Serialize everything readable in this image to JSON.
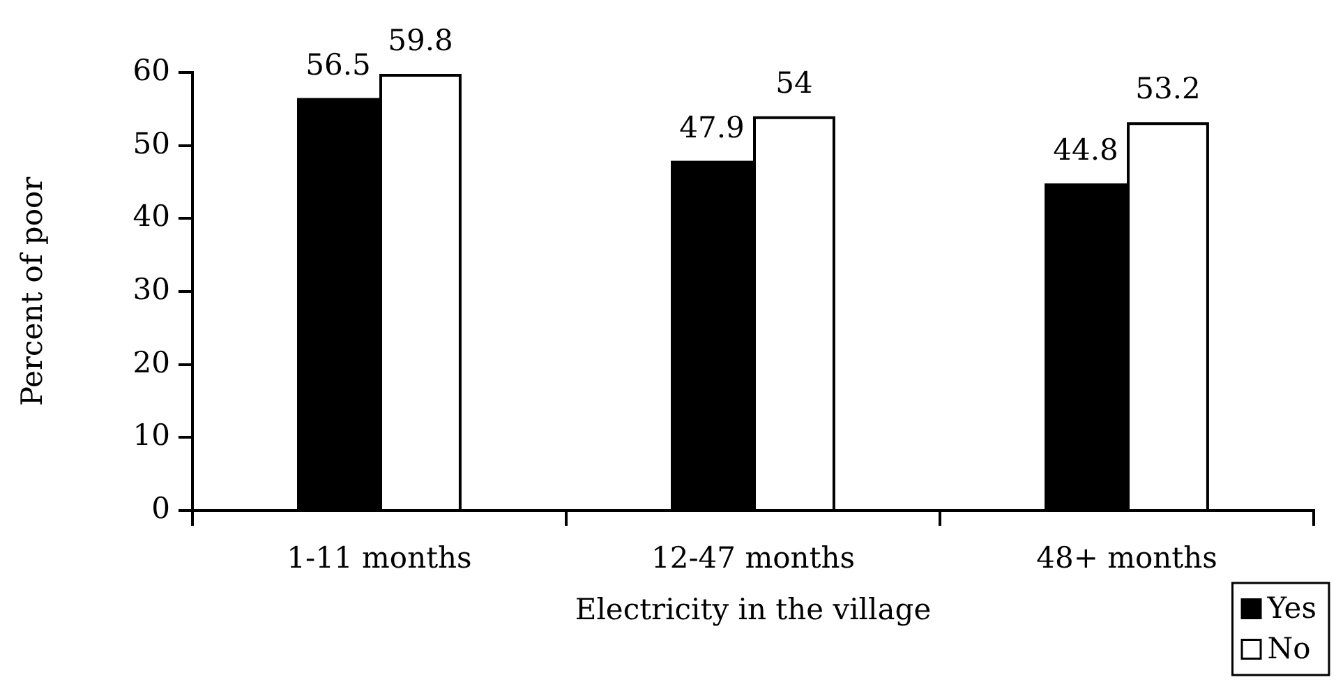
{
  "chart_data": {
    "type": "bar",
    "xlabel": "Electricity in the village",
    "ylabel": "Percent of poor",
    "categories": [
      "1-11 months",
      "12-47 months",
      "48+ months"
    ],
    "series": [
      {
        "name": "Yes",
        "color": "#000000",
        "values": [
          56.5,
          47.9,
          44.8
        ]
      },
      {
        "name": "No",
        "color": "#ffffff",
        "values": [
          59.8,
          54,
          53.2
        ]
      }
    ],
    "ylim": [
      0,
      60
    ],
    "yticks": [
      0,
      10,
      20,
      30,
      40,
      50,
      60
    ],
    "data_labels": true,
    "legend": "bottom right"
  }
}
